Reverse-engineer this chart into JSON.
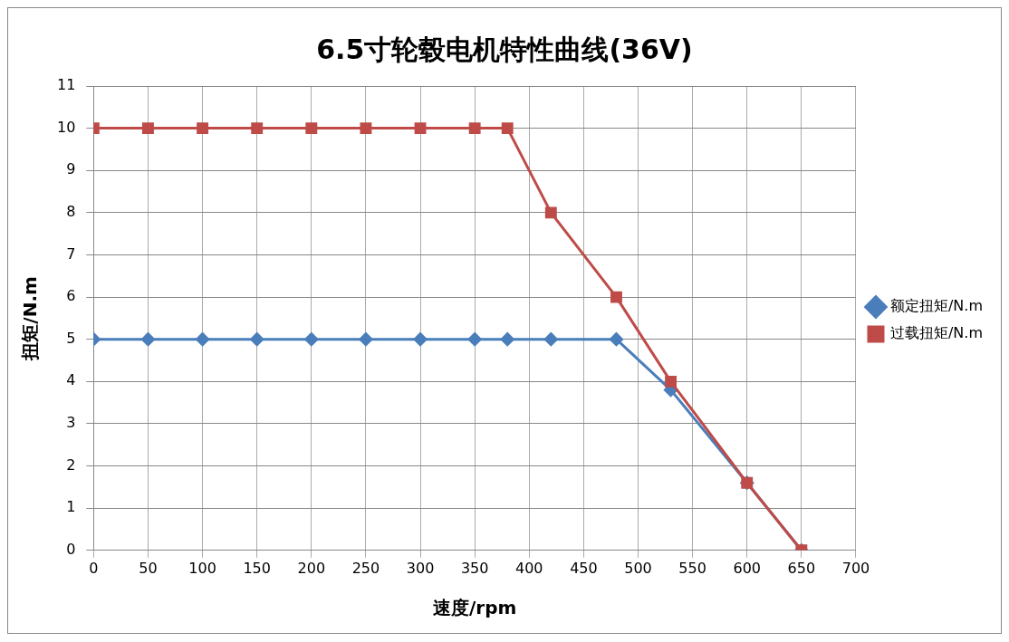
{
  "chart_data": {
    "type": "line",
    "title": "6.5寸轮毂电机特性曲线(36V)",
    "xlabel": "速度/rpm",
    "ylabel": "扭矩/N.m",
    "x": [
      0,
      50,
      100,
      150,
      200,
      250,
      300,
      350,
      380,
      420,
      480,
      530,
      600,
      650
    ],
    "series": [
      {
        "name": "额定扭矩/N.m",
        "color": "#4a7ebb",
        "marker": "diamond",
        "values": [
          5,
          5,
          5,
          5,
          5,
          5,
          5,
          5,
          5,
          5,
          5,
          3.8,
          1.6,
          0
        ]
      },
      {
        "name": "过载扭矩/N.m",
        "color": "#be4b48",
        "marker": "square",
        "values": [
          10,
          10,
          10,
          10,
          10,
          10,
          10,
          10,
          10,
          8,
          6,
          4,
          1.6,
          0
        ]
      }
    ],
    "xlim": [
      0,
      700
    ],
    "xticks": [
      0,
      50,
      100,
      150,
      200,
      250,
      300,
      350,
      400,
      450,
      500,
      550,
      600,
      650,
      700
    ],
    "ylim": [
      0,
      11
    ],
    "yticks": [
      0,
      1,
      2,
      3,
      4,
      5,
      6,
      7,
      8,
      9,
      10,
      11
    ],
    "grid": true,
    "legend": "right",
    "line_style": "solid"
  }
}
